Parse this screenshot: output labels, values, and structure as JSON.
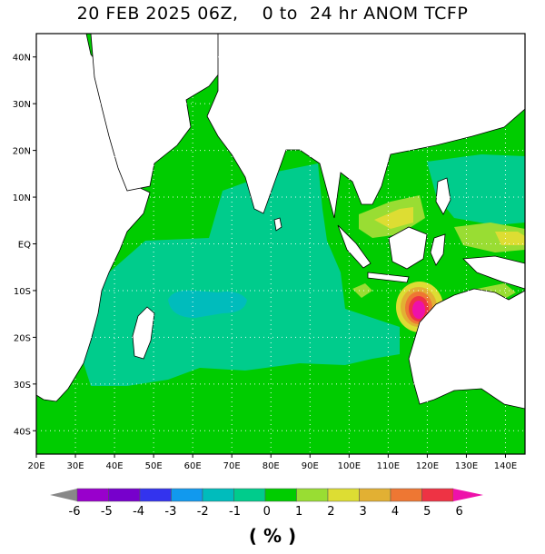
{
  "title": "20 FEB 2025 06Z,    0 to  24 hr ANOM TCFP",
  "map": {
    "lon_range": [
      20,
      145
    ],
    "lat_range": [
      -45,
      45
    ],
    "lon_labels": [
      "20E",
      "30E",
      "40E",
      "50E",
      "60E",
      "70E",
      "80E",
      "90E",
      "100E",
      "110E",
      "120E",
      "130E",
      "140E"
    ],
    "lat_labels": [
      "40N",
      "30N",
      "20N",
      "10N",
      "EQ",
      "10S",
      "20S",
      "30S",
      "40S"
    ],
    "colors": {
      "land": "#ffffff",
      "ocean_0_1": "#00cc00",
      "ocean_m1_0": "#00cc8c",
      "ocean_m2_m1": "#00bcbc",
      "pos_1_2": "#99dd33",
      "pos_2_3": "#dddd33",
      "pos_3_4": "#e2b033",
      "pos_4_5": "#ee7733",
      "pos_5_6": "#ee3344",
      "pos_6_plus": "#ee11aa"
    }
  },
  "colorbar": {
    "labels": [
      "-6",
      "-5",
      "-4",
      "-3",
      "-2",
      "-1",
      "0",
      "1",
      "2",
      "3",
      "4",
      "5",
      "6"
    ],
    "colors": [
      "#9900cc",
      "#7700cc",
      "#3333ee",
      "#1199ee",
      "#00bcbc",
      "#00cc8c",
      "#00cc00",
      "#99dd33",
      "#dddd33",
      "#e2b033",
      "#ee7733",
      "#ee3344"
    ],
    "low_end_color": "#888888",
    "high_end_color": "#ee11aa"
  },
  "units": "( % )"
}
